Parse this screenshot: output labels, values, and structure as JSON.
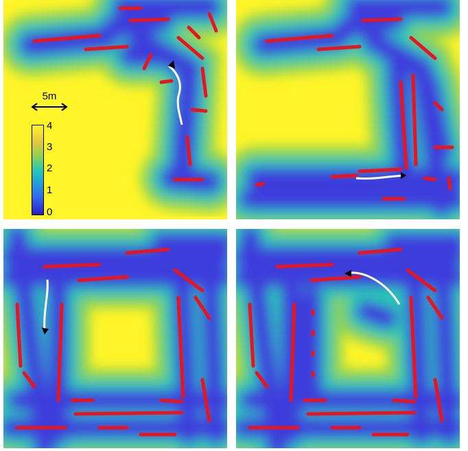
{
  "figure": {
    "panels": [
      {
        "id": "panel-1"
      },
      {
        "id": "panel-2"
      },
      {
        "id": "panel-3"
      },
      {
        "id": "panel-4"
      }
    ],
    "scale_bar": {
      "label": "5m"
    },
    "colorbar": {
      "ticks": [
        "4",
        "3",
        "2",
        "1",
        "0"
      ],
      "range": [
        0,
        4
      ],
      "colors": {
        "low": "#2a1ec8",
        "mid": "#28c8b4",
        "high": "#fff528"
      }
    },
    "colors": {
      "obstacle": "#e8141e",
      "near_field": "#3c3cdc",
      "mid_field": "#1ea0dc",
      "far_field": "#fff528",
      "path": "#ffffff",
      "robot_marker": "#000000"
    }
  }
}
